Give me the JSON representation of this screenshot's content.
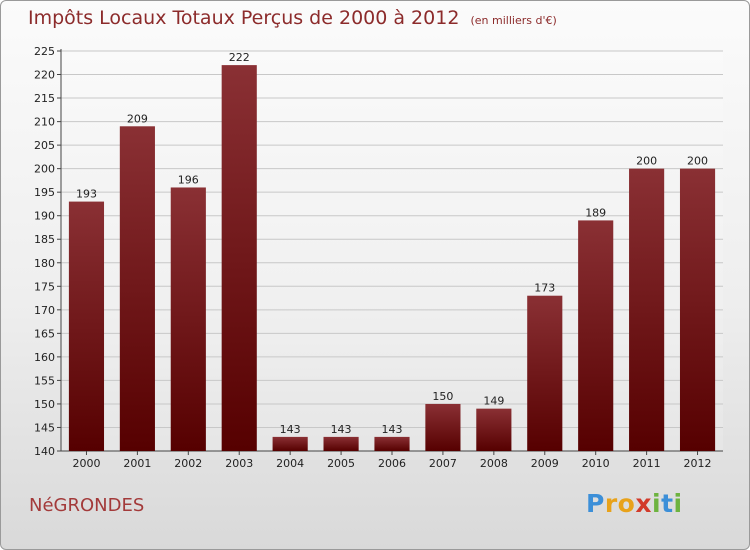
{
  "chart_data": {
    "type": "bar",
    "title": "Impôts Locaux Totaux Perçus de 2000 à 2012",
    "subtitle": "(en milliers d'€)",
    "categories": [
      "2000",
      "2001",
      "2002",
      "2003",
      "2004",
      "2005",
      "2006",
      "2007",
      "2008",
      "2009",
      "2010",
      "2011",
      "2012"
    ],
    "values": [
      193,
      209,
      196,
      222,
      143,
      143,
      143,
      150,
      149,
      173,
      189,
      200,
      200
    ],
    "ylim": [
      140,
      225
    ],
    "yticks": [
      140,
      145,
      150,
      155,
      160,
      165,
      170,
      175,
      180,
      185,
      190,
      195,
      200,
      205,
      210,
      215,
      220,
      225
    ],
    "grid": true,
    "bar_color": "#7a1e22"
  },
  "commune": "NéGRONDES",
  "logo": {
    "letters": [
      "P",
      "r",
      "o",
      "x",
      "i",
      "t",
      "i"
    ],
    "colors": [
      "#3c8fd8",
      "#e8a21a",
      "#e8a21a",
      "#d23a2a",
      "#6db33f",
      "#3c8fd8",
      "#6db33f"
    ]
  }
}
